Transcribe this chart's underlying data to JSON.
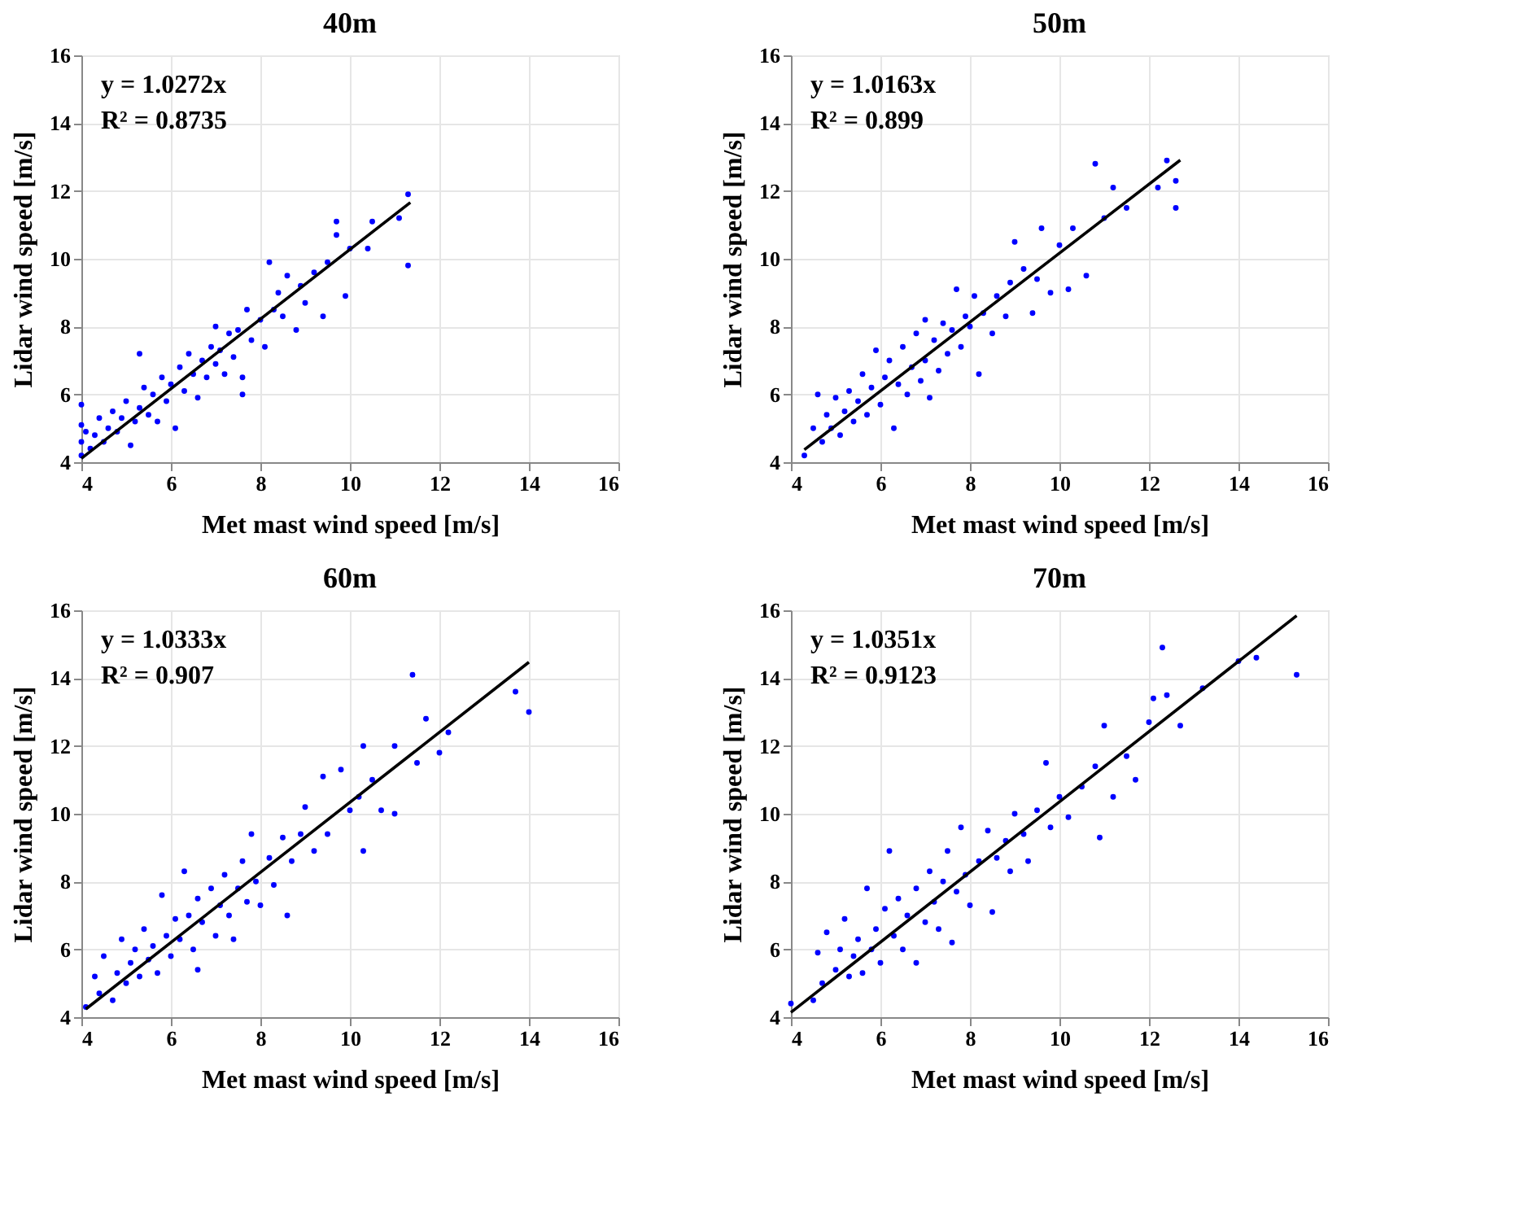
{
  "chart_data": [
    {
      "type": "scatter",
      "title": "40m",
      "xlabel": "Met mast wind speed [m/s]",
      "ylabel": "Lidar wind speed [m/s]",
      "annotations": [
        "y = 1.0272x",
        "R² = 0.8735"
      ],
      "xlim": [
        4,
        16
      ],
      "ylim": [
        4,
        16
      ],
      "xticks": [
        4,
        6,
        8,
        10,
        12,
        14,
        16
      ],
      "yticks": [
        4,
        6,
        8,
        10,
        12,
        14,
        16
      ],
      "grid": true,
      "series": [
        {
          "marker": "circle",
          "color": "#0000ff",
          "x": [
            4.0,
            4.0,
            4.0,
            4.0,
            4.1,
            4.2,
            4.3,
            4.4,
            4.5,
            4.6,
            4.7,
            4.8,
            4.9,
            5.0,
            5.1,
            5.2,
            5.3,
            5.3,
            5.4,
            5.5,
            5.6,
            5.7,
            5.8,
            5.9,
            6.0,
            6.1,
            6.2,
            6.3,
            6.4,
            6.5,
            6.6,
            6.7,
            6.8,
            6.9,
            7.0,
            7.0,
            7.1,
            7.2,
            7.3,
            7.4,
            7.5,
            7.6,
            7.6,
            7.7,
            7.8,
            8.0,
            8.1,
            8.2,
            8.3,
            8.4,
            8.5,
            8.6,
            8.8,
            8.9,
            9.0,
            9.2,
            9.4,
            9.5,
            9.7,
            9.7,
            9.9,
            10.0,
            10.4,
            10.5,
            11.1,
            11.3,
            11.3
          ],
          "values": [
            4.2,
            4.6,
            5.1,
            5.7,
            4.9,
            4.4,
            4.8,
            5.3,
            4.6,
            5.0,
            5.5,
            4.9,
            5.3,
            5.8,
            4.5,
            5.2,
            5.6,
            7.2,
            6.2,
            5.4,
            6.0,
            5.2,
            6.5,
            5.8,
            6.3,
            5.0,
            6.8,
            6.1,
            7.2,
            6.6,
            5.9,
            7.0,
            6.5,
            7.4,
            6.9,
            8.0,
            7.3,
            6.6,
            7.8,
            7.1,
            7.9,
            6.0,
            6.5,
            8.5,
            7.6,
            8.2,
            7.4,
            9.9,
            8.5,
            9.0,
            8.3,
            9.5,
            7.9,
            9.2,
            8.7,
            9.6,
            8.3,
            9.9,
            10.7,
            11.1,
            8.9,
            10.3,
            10.3,
            11.1,
            11.2,
            11.9,
            9.8
          ]
        },
        {
          "type": "line",
          "color": "#000000",
          "x": [
            4.0,
            11.35
          ],
          "values": [
            4.11,
            11.66
          ]
        }
      ]
    },
    {
      "type": "scatter",
      "title": "50m",
      "xlabel": "Met mast wind speed [m/s]",
      "ylabel": "Lidar wind speed [m/s]",
      "annotations": [
        "y = 1.0163x",
        "R² = 0.899"
      ],
      "xlim": [
        4,
        16
      ],
      "ylim": [
        4,
        16
      ],
      "xticks": [
        4,
        6,
        8,
        10,
        12,
        14,
        16
      ],
      "yticks": [
        4,
        6,
        8,
        10,
        12,
        14,
        16
      ],
      "grid": true,
      "series": [
        {
          "marker": "circle",
          "color": "#0000ff",
          "x": [
            4.3,
            4.5,
            4.6,
            4.7,
            4.8,
            4.9,
            5.0,
            5.1,
            5.2,
            5.3,
            5.4,
            5.5,
            5.6,
            5.7,
            5.8,
            5.9,
            6.0,
            6.1,
            6.2,
            6.3,
            6.4,
            6.5,
            6.6,
            6.7,
            6.8,
            6.9,
            7.0,
            7.0,
            7.1,
            7.2,
            7.3,
            7.4,
            7.5,
            7.6,
            7.7,
            7.8,
            7.9,
            8.0,
            8.1,
            8.2,
            8.3,
            8.5,
            8.6,
            8.8,
            8.9,
            9.0,
            9.2,
            9.4,
            9.5,
            9.6,
            9.8,
            10.0,
            10.2,
            10.3,
            10.6,
            10.8,
            11.0,
            11.2,
            11.5,
            12.2,
            12.6,
            12.6,
            12.4
          ],
          "values": [
            4.2,
            5.0,
            6.0,
            4.6,
            5.4,
            5.0,
            5.9,
            4.8,
            5.5,
            6.1,
            5.2,
            5.8,
            6.6,
            5.4,
            6.2,
            7.3,
            5.7,
            6.5,
            7.0,
            5.0,
            6.3,
            7.4,
            6.0,
            6.8,
            7.8,
            6.4,
            8.2,
            7.0,
            5.9,
            7.6,
            6.7,
            8.1,
            7.2,
            7.9,
            9.1,
            7.4,
            8.3,
            8.0,
            8.9,
            6.6,
            8.4,
            7.8,
            8.9,
            8.3,
            9.3,
            10.5,
            9.7,
            8.4,
            9.4,
            10.9,
            9.0,
            10.4,
            9.1,
            10.9,
            9.5,
            12.8,
            11.2,
            12.1,
            11.5,
            12.1,
            11.5,
            12.3,
            12.9
          ]
        },
        {
          "type": "line",
          "color": "#000000",
          "x": [
            4.3,
            12.7
          ],
          "values": [
            4.37,
            12.91
          ]
        }
      ]
    },
    {
      "type": "scatter",
      "title": "60m",
      "xlabel": "Met mast wind speed [m/s]",
      "ylabel": "Lidar wind speed [m/s]",
      "annotations": [
        "y = 1.0333x",
        "R² = 0.907"
      ],
      "xlim": [
        4,
        16
      ],
      "ylim": [
        4,
        16
      ],
      "xticks": [
        4,
        6,
        8,
        10,
        12,
        14,
        16
      ],
      "yticks": [
        4,
        6,
        8,
        10,
        12,
        14,
        16
      ],
      "grid": true,
      "series": [
        {
          "marker": "circle",
          "color": "#0000ff",
          "x": [
            4.1,
            4.3,
            4.4,
            4.5,
            4.7,
            4.8,
            4.9,
            5.0,
            5.1,
            5.2,
            5.3,
            5.4,
            5.5,
            5.6,
            5.7,
            5.8,
            5.9,
            6.0,
            6.1,
            6.2,
            6.3,
            6.4,
            6.5,
            6.6,
            6.6,
            6.7,
            6.9,
            7.0,
            7.1,
            7.2,
            7.3,
            7.4,
            7.5,
            7.6,
            7.7,
            7.8,
            7.9,
            8.0,
            8.2,
            8.3,
            8.5,
            8.6,
            8.7,
            8.9,
            9.0,
            9.2,
            9.4,
            9.5,
            9.8,
            10.0,
            10.2,
            10.3,
            10.3,
            10.5,
            10.7,
            11.0,
            11.0,
            11.4,
            11.5,
            11.7,
            12.0,
            12.2,
            13.7,
            14.0
          ],
          "values": [
            4.3,
            5.2,
            4.7,
            5.8,
            4.5,
            5.3,
            6.3,
            5.0,
            5.6,
            6.0,
            5.2,
            6.6,
            5.7,
            6.1,
            5.3,
            7.6,
            6.4,
            5.8,
            6.9,
            6.3,
            8.3,
            7.0,
            6.0,
            5.4,
            7.5,
            6.8,
            7.8,
            6.4,
            7.3,
            8.2,
            7.0,
            6.3,
            7.8,
            8.6,
            7.4,
            9.4,
            8.0,
            7.3,
            8.7,
            7.9,
            9.3,
            7.0,
            8.6,
            9.4,
            10.2,
            8.9,
            11.1,
            9.4,
            11.3,
            10.1,
            10.5,
            12.0,
            8.9,
            11.0,
            10.1,
            12.0,
            10.0,
            14.1,
            11.5,
            12.8,
            11.8,
            12.4,
            13.6,
            13.0
          ]
        },
        {
          "type": "line",
          "color": "#000000",
          "x": [
            4.1,
            14.0
          ],
          "values": [
            4.24,
            14.47
          ]
        }
      ]
    },
    {
      "type": "scatter",
      "title": "70m",
      "xlabel": "Met mast wind speed [m/s]",
      "ylabel": "Lidar wind speed [m/s]",
      "annotations": [
        "y = 1.0351x",
        "R² = 0.9123"
      ],
      "xlim": [
        4,
        16
      ],
      "ylim": [
        4,
        16
      ],
      "xticks": [
        4,
        6,
        8,
        10,
        12,
        14,
        16
      ],
      "yticks": [
        4,
        6,
        8,
        10,
        12,
        14,
        16
      ],
      "grid": true,
      "series": [
        {
          "marker": "circle",
          "color": "#0000ff",
          "x": [
            4.0,
            4.5,
            4.6,
            4.7,
            4.8,
            5.0,
            5.1,
            5.2,
            5.3,
            5.4,
            5.5,
            5.6,
            5.7,
            5.8,
            5.9,
            6.0,
            6.1,
            6.2,
            6.3,
            6.4,
            6.5,
            6.6,
            6.8,
            6.8,
            7.0,
            7.1,
            7.2,
            7.3,
            7.4,
            7.5,
            7.6,
            7.7,
            7.8,
            7.9,
            8.0,
            8.2,
            8.4,
            8.5,
            8.6,
            8.8,
            8.9,
            9.0,
            9.2,
            9.3,
            9.5,
            9.7,
            9.8,
            10.0,
            10.2,
            10.5,
            10.8,
            10.9,
            11.0,
            11.2,
            11.5,
            11.7,
            12.0,
            12.1,
            12.3,
            12.4,
            12.7,
            13.2,
            14.0,
            14.4,
            15.3
          ],
          "values": [
            4.4,
            4.5,
            5.9,
            5.0,
            6.5,
            5.4,
            6.0,
            6.9,
            5.2,
            5.8,
            6.3,
            5.3,
            7.8,
            6.0,
            6.6,
            5.6,
            7.2,
            8.9,
            6.4,
            7.5,
            6.0,
            7.0,
            5.6,
            7.8,
            6.8,
            8.3,
            7.4,
            6.6,
            8.0,
            8.9,
            6.2,
            7.7,
            9.6,
            8.2,
            7.3,
            8.6,
            9.5,
            7.1,
            8.7,
            9.2,
            8.3,
            10.0,
            9.4,
            8.6,
            10.1,
            11.5,
            9.6,
            10.5,
            9.9,
            10.8,
            11.4,
            9.3,
            12.6,
            10.5,
            11.7,
            11.0,
            12.7,
            13.4,
            14.9,
            13.5,
            12.6,
            13.7,
            14.5,
            14.6,
            14.1
          ]
        },
        {
          "type": "line",
          "color": "#000000",
          "x": [
            4.0,
            15.3
          ],
          "values": [
            4.14,
            15.84
          ]
        }
      ]
    }
  ]
}
